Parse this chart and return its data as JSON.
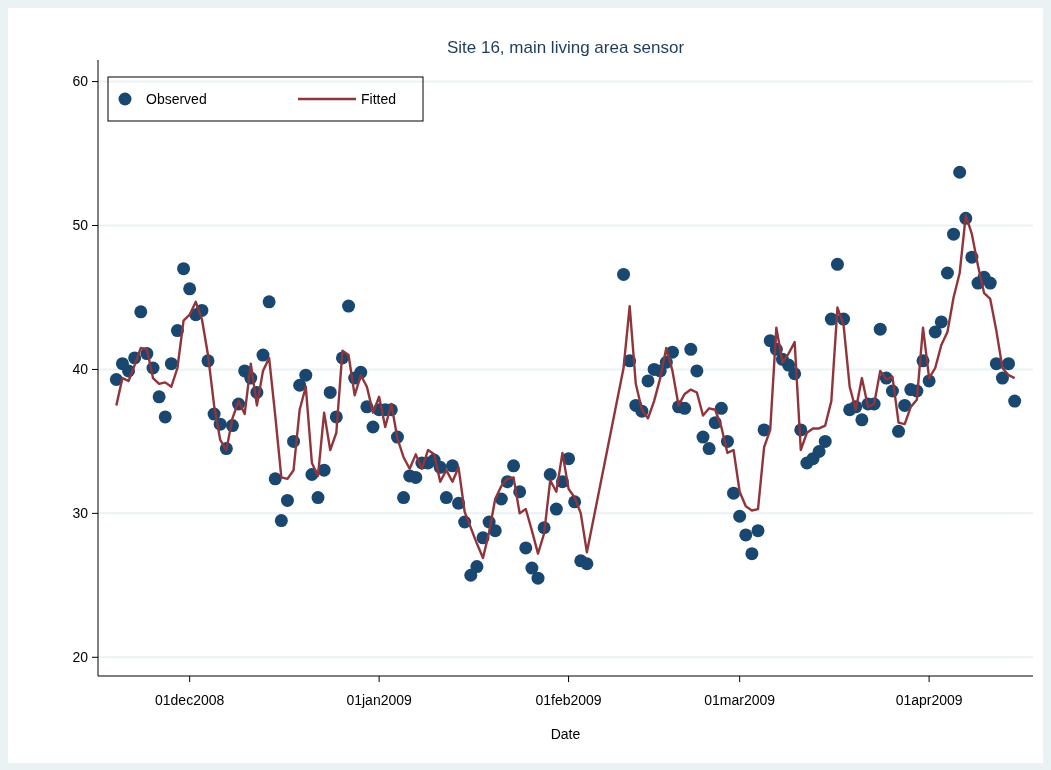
{
  "chart_data": {
    "type": "scatter",
    "title": "Site 16, main living area sensor",
    "xlabel": "Date",
    "x": [
      "2008-11-19",
      "2008-11-20",
      "2008-11-21",
      "2008-11-22",
      "2008-11-23",
      "2008-11-24",
      "2008-11-25",
      "2008-11-26",
      "2008-11-27",
      "2008-11-28",
      "2008-11-29",
      "2008-11-30",
      "2008-12-01",
      "2008-12-02",
      "2008-12-03",
      "2008-12-04",
      "2008-12-05",
      "2008-12-06",
      "2008-12-07",
      "2008-12-08",
      "2008-12-09",
      "2008-12-10",
      "2008-12-11",
      "2008-12-12",
      "2008-12-13",
      "2008-12-14",
      "2008-12-15",
      "2008-12-16",
      "2008-12-17",
      "2008-12-18",
      "2008-12-19",
      "2008-12-20",
      "2008-12-21",
      "2008-12-22",
      "2008-12-23",
      "2008-12-24",
      "2008-12-25",
      "2008-12-26",
      "2008-12-27",
      "2008-12-28",
      "2008-12-29",
      "2008-12-30",
      "2008-12-31",
      "2009-01-01",
      "2009-01-02",
      "2009-01-03",
      "2009-01-04",
      "2009-01-05",
      "2009-01-06",
      "2009-01-07",
      "2009-01-08",
      "2009-01-09",
      "2009-01-10",
      "2009-01-11",
      "2009-01-12",
      "2009-01-13",
      "2009-01-14",
      "2009-01-15",
      "2009-01-16",
      "2009-01-17",
      "2009-01-18",
      "2009-01-19",
      "2009-01-20",
      "2009-01-21",
      "2009-01-22",
      "2009-01-23",
      "2009-01-24",
      "2009-01-25",
      "2009-01-26",
      "2009-01-27",
      "2009-01-28",
      "2009-01-29",
      "2009-01-30",
      "2009-01-31",
      "2009-02-01",
      "2009-02-02",
      "2009-02-03",
      "2009-02-04",
      "2009-02-10",
      "2009-02-11",
      "2009-02-12",
      "2009-02-13",
      "2009-02-14",
      "2009-02-15",
      "2009-02-16",
      "2009-02-17",
      "2009-02-18",
      "2009-02-19",
      "2009-02-20",
      "2009-02-21",
      "2009-02-22",
      "2009-02-23",
      "2009-02-24",
      "2009-02-25",
      "2009-02-26",
      "2009-02-27",
      "2009-02-28",
      "2009-03-01",
      "2009-03-02",
      "2009-03-03",
      "2009-03-04",
      "2009-03-05",
      "2009-03-06",
      "2009-03-07",
      "2009-03-08",
      "2009-03-09",
      "2009-03-10",
      "2009-03-11",
      "2009-03-12",
      "2009-03-13",
      "2009-03-14",
      "2009-03-15",
      "2009-03-16",
      "2009-03-17",
      "2009-03-18",
      "2009-03-19",
      "2009-03-20",
      "2009-03-21",
      "2009-03-22",
      "2009-03-23",
      "2009-03-24",
      "2009-03-25",
      "2009-03-26",
      "2009-03-27",
      "2009-03-28",
      "2009-03-29",
      "2009-03-30",
      "2009-03-31",
      "2009-04-01",
      "2009-04-02",
      "2009-04-03",
      "2009-04-04",
      "2009-04-05",
      "2009-04-06",
      "2009-04-07",
      "2009-04-08",
      "2009-04-09",
      "2009-04-10",
      "2009-04-11",
      "2009-04-12",
      "2009-04-13",
      "2009-04-14",
      "2009-04-15"
    ],
    "series": [
      {
        "name": "Observed",
        "color": "#1a476f",
        "marker": "circle",
        "values": [
          39.3,
          40.4,
          39.9,
          40.8,
          44.0,
          41.1,
          40.1,
          38.1,
          36.7,
          40.4,
          42.7,
          47.0,
          45.6,
          43.8,
          44.1,
          40.6,
          36.9,
          36.2,
          34.5,
          36.1,
          37.6,
          39.9,
          39.4,
          38.4,
          41.0,
          44.7,
          32.4,
          29.5,
          30.9,
          35.0,
          38.9,
          39.6,
          32.7,
          31.1,
          33.0,
          38.4,
          36.7,
          40.8,
          44.4,
          39.4,
          39.8,
          37.4,
          36.0,
          37.2,
          37.2,
          37.2,
          35.3,
          31.1,
          32.6,
          32.5,
          33.5,
          33.5,
          33.7,
          33.2,
          31.1,
          33.3,
          30.7,
          29.4,
          25.7,
          26.3,
          28.3,
          29.4,
          28.8,
          31.0,
          32.2,
          33.3,
          31.5,
          27.6,
          26.2,
          25.5,
          29.0,
          32.7,
          30.3,
          32.2,
          33.8,
          30.8,
          26.7,
          26.5,
          46.6,
          40.6,
          37.5,
          37.1,
          39.2,
          40.0,
          39.9,
          40.5,
          41.2,
          37.4,
          37.3,
          41.4,
          39.9,
          35.3,
          34.5,
          36.3,
          37.3,
          35.0,
          31.4,
          29.8,
          28.5,
          27.2,
          28.8,
          35.8,
          42.0,
          41.4,
          40.7,
          40.3,
          39.7,
          35.8,
          33.5,
          33.8,
          34.3,
          35.0,
          43.5,
          47.3,
          43.5,
          37.2,
          37.4,
          36.5,
          37.6,
          37.6,
          42.8,
          39.4,
          38.5,
          35.7,
          37.5,
          38.6,
          38.5,
          40.6,
          39.2,
          42.6,
          43.3,
          46.7,
          49.4,
          53.7,
          50.5,
          47.8,
          46.0,
          46.4,
          46.0,
          40.4,
          39.4,
          40.4,
          37.8
        ]
      },
      {
        "name": "Fitted",
        "type": "line",
        "color": "#90353b",
        "line_style": "solid",
        "values": [
          37.5,
          39.4,
          39.2,
          40.3,
          41.5,
          41.4,
          39.4,
          39.0,
          39.1,
          38.8,
          40.1,
          43.4,
          43.8,
          44.7,
          43.5,
          41.0,
          37.5,
          35.1,
          34.4,
          36.6,
          37.8,
          36.9,
          40.4,
          37.5,
          39.9,
          40.8,
          36.8,
          32.5,
          32.4,
          33.0,
          37.2,
          38.8,
          33.5,
          32.6,
          37.0,
          34.4,
          35.6,
          41.3,
          41.0,
          38.2,
          39.6,
          38.8,
          37.0,
          38.1,
          36.0,
          37.6,
          35.2,
          33.9,
          33.1,
          34.1,
          33.1,
          34.4,
          34.1,
          32.2,
          33.0,
          32.2,
          33.2,
          30.1,
          29.0,
          27.9,
          26.9,
          28.7,
          31.0,
          31.9,
          32.4,
          32.5,
          30.0,
          30.3,
          28.8,
          27.2,
          28.6,
          32.3,
          31.5,
          34.2,
          31.7,
          31.1,
          30.0,
          27.3,
          40.1,
          44.4,
          39.0,
          37.2,
          36.6,
          37.8,
          39.4,
          41.5,
          39.9,
          37.5,
          38.3,
          38.6,
          38.4,
          36.8,
          37.3,
          37.2,
          36.0,
          34.2,
          34.4,
          31.5,
          30.5,
          30.2,
          30.3,
          34.6,
          35.8,
          42.9,
          40.5,
          41.1,
          41.9,
          34.4,
          35.6,
          35.9,
          35.9,
          36.1,
          37.8,
          44.3,
          43.1,
          38.8,
          37.2,
          39.4,
          37.4,
          37.6,
          39.9,
          39.3,
          39.5,
          36.3,
          36.2,
          37.4,
          37.9,
          42.9,
          39.4,
          40.1,
          41.7,
          42.6,
          45.0,
          46.7,
          50.7,
          49.4,
          47.2,
          45.3,
          44.9,
          42.7,
          40.1,
          39.6,
          39.4
        ]
      }
    ],
    "xlim": [
      "2008-11-16",
      "2009-04-18"
    ],
    "xticks": [
      {
        "value": "2008-12-01",
        "label": "01dec2008"
      },
      {
        "value": "2009-01-01",
        "label": "01jan2009"
      },
      {
        "value": "2009-02-01",
        "label": "01feb2009"
      },
      {
        "value": "2009-03-01",
        "label": "01mar2009"
      },
      {
        "value": "2009-04-01",
        "label": "01apr2009"
      }
    ],
    "ylim": [
      18.7,
      61.5
    ],
    "yticks": [
      20,
      30,
      40,
      50,
      60
    ],
    "grid": "y",
    "legend": "top left"
  }
}
